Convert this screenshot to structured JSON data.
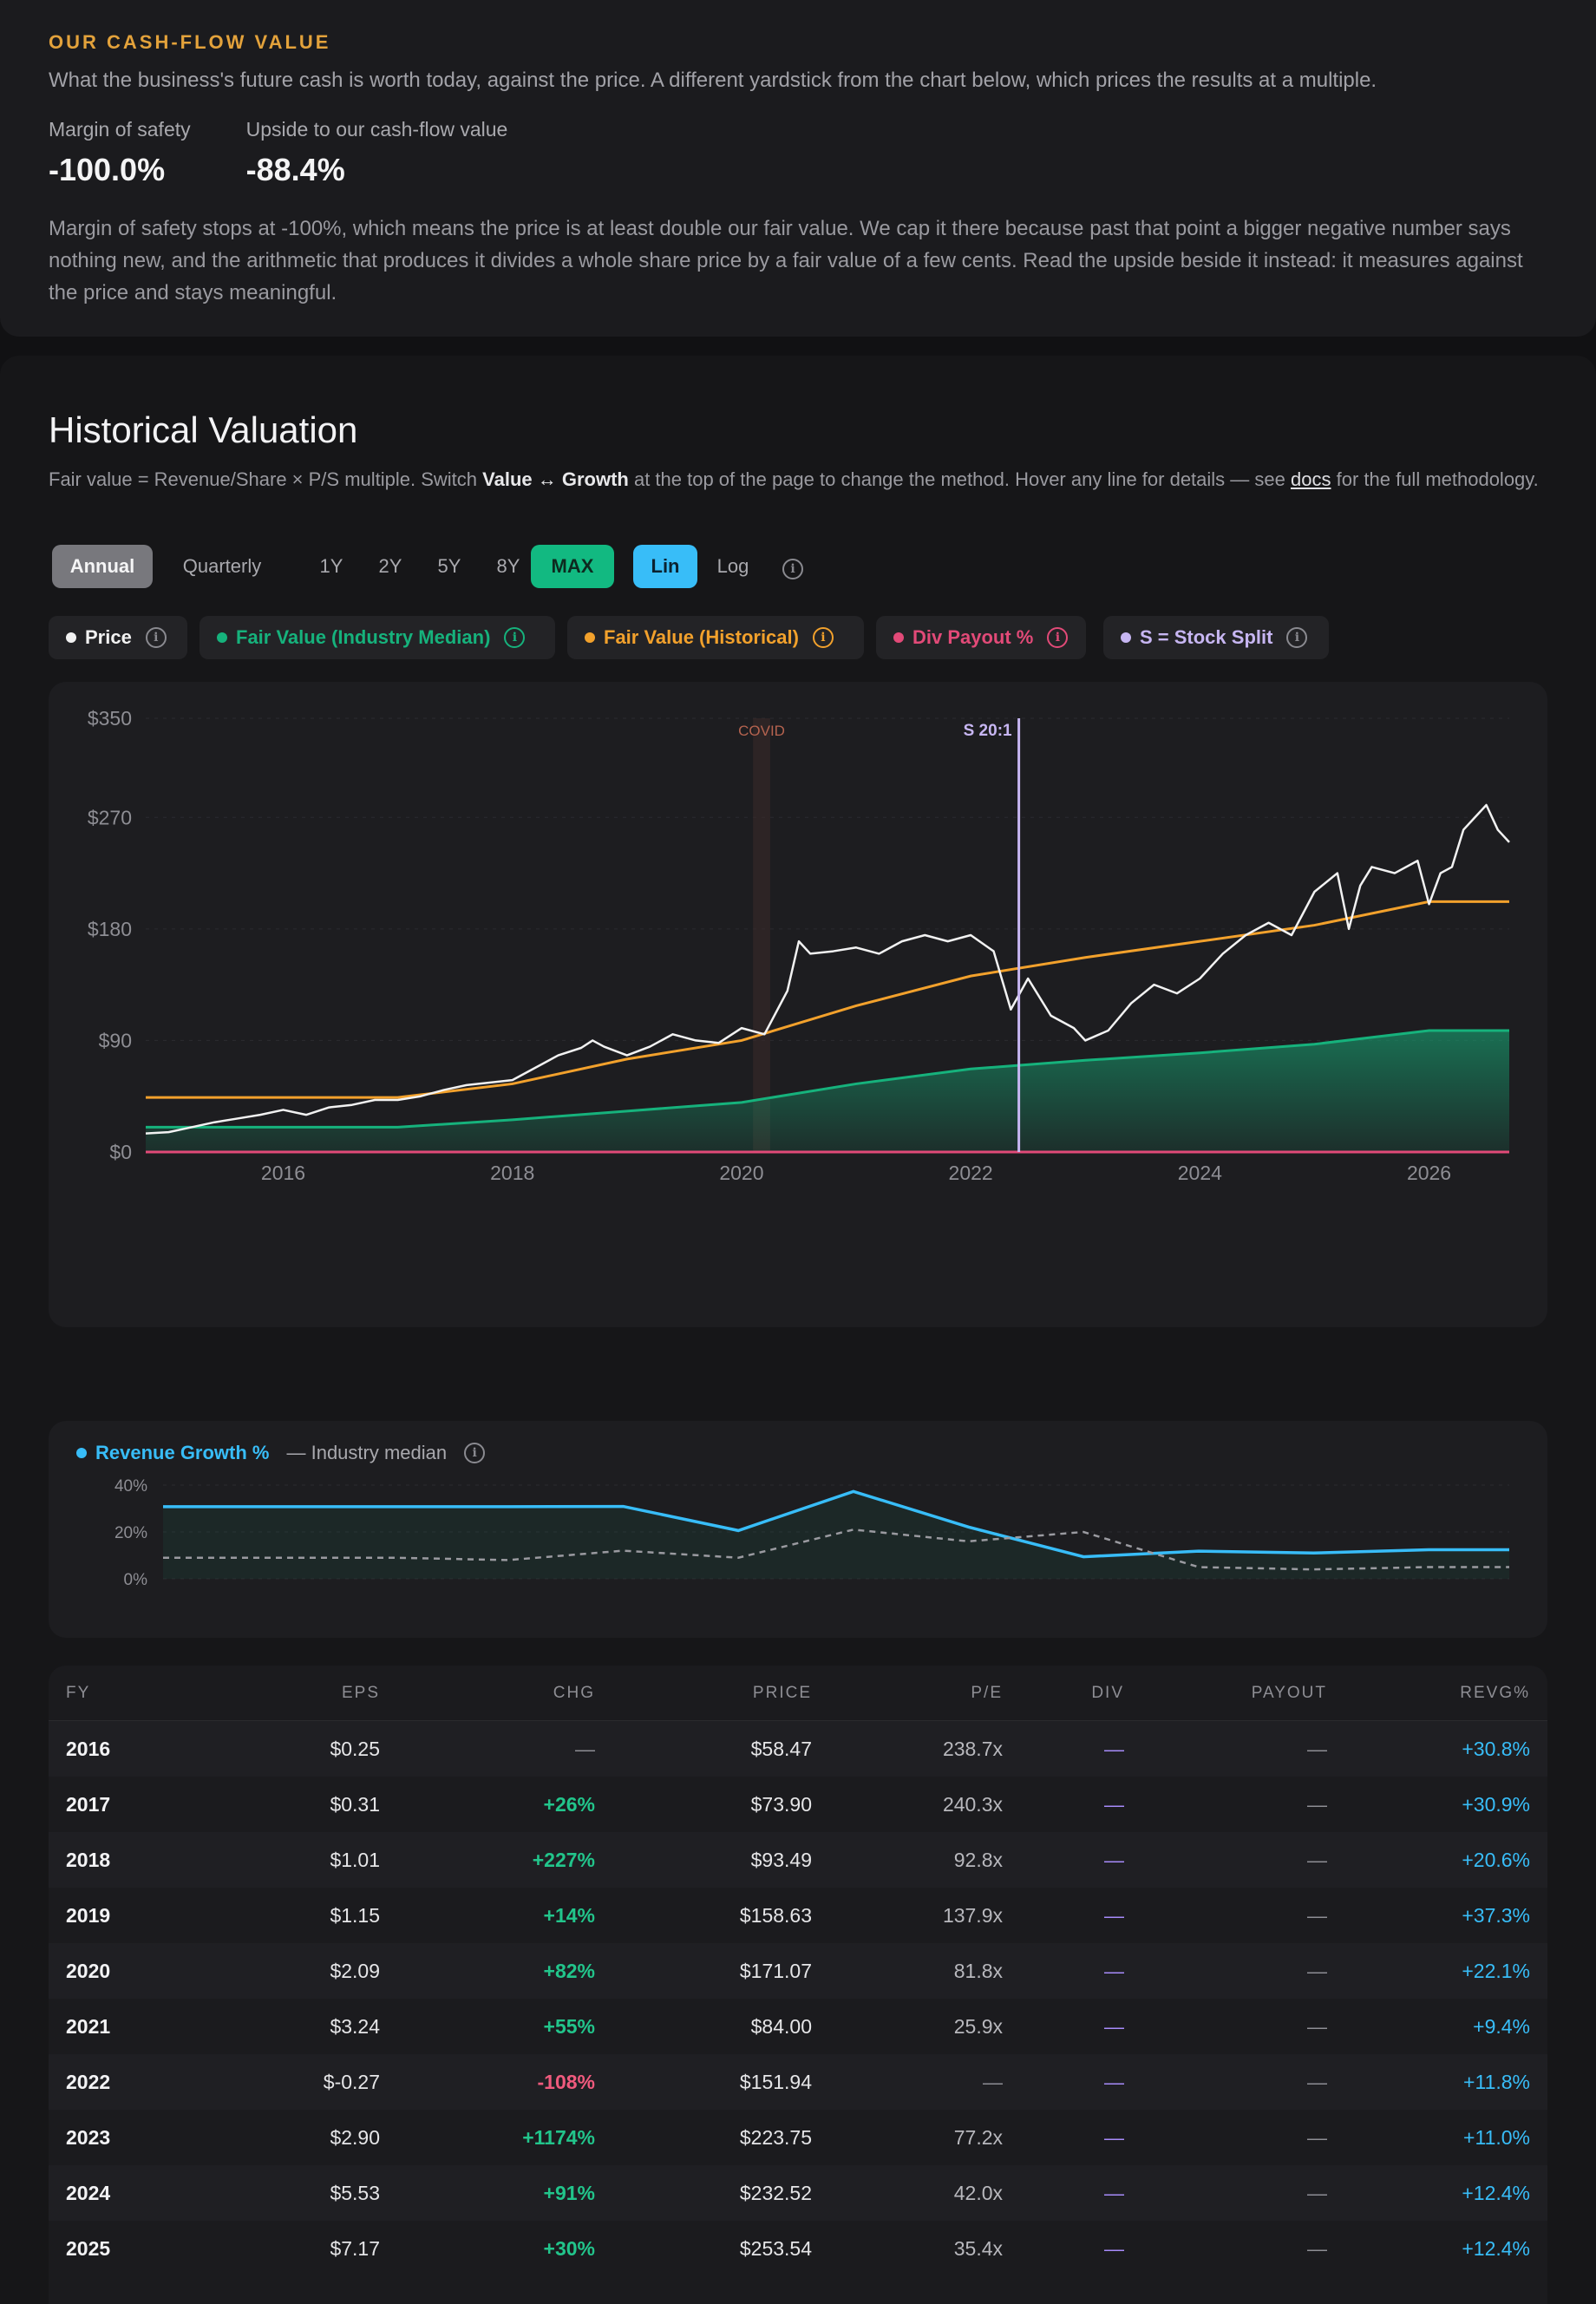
{
  "cashflow": {
    "eyebrow": "OUR CASH-FLOW VALUE",
    "description": "What the business's future cash is worth today, against the price. A different yardstick from the chart below, which prices the results at a multiple.",
    "metrics": [
      {
        "label": "Margin of safety",
        "value": "-100.0%"
      },
      {
        "label": "Upside to our cash-flow value",
        "value": "-88.4%"
      }
    ],
    "note": "Margin of safety stops at -100%, which means the price is at least double our fair value. We cap it there because past that point a bigger negative number says nothing new, and the arithmetic that produces it divides a whole share price by a fair value of a few cents. Read the upside beside it instead: it measures against the price and stays meaningful."
  },
  "historical": {
    "title": "Historical Valuation",
    "desc_part1": "Fair value = Revenue/Share × P/S multiple. Switch ",
    "desc_bold": "Value ↔ Growth",
    "desc_part2": " at the top of the page to change the method. Hover any line for details — see ",
    "desc_link": "docs",
    "desc_part3": " for the full methodology.",
    "period_toggle": [
      "Annual",
      "Quarterly"
    ],
    "ranges": [
      "1Y",
      "2Y",
      "5Y",
      "8Y",
      "MAX"
    ],
    "scale_toggle": [
      "Lin",
      "Log"
    ],
    "active": {
      "period": "Annual",
      "range": "MAX",
      "scale": "Lin"
    },
    "info_icon": "info-icon",
    "legend": [
      {
        "label": "Price",
        "color": "#f2f2f2"
      },
      {
        "label": "Fair Value (Industry Median)",
        "color": "#16b27c"
      },
      {
        "label": "Fair Value (Historical)",
        "color": "#f2a12c"
      },
      {
        "label": "Div Payout %",
        "color": "#e24a78"
      },
      {
        "label": "S = Stock Split",
        "color": "#c7b6f2"
      }
    ]
  },
  "chart_data": [
    {
      "type": "line",
      "y_ticks": [
        "$350",
        "$270",
        "$180",
        "$90",
        "$0"
      ],
      "x_ticks": [
        "2016",
        "2018",
        "2020",
        "2022",
        "2024",
        "2026"
      ],
      "ylim": [
        0,
        350
      ],
      "xlim": [
        2014.8,
        2026.7
      ],
      "annotations": [
        {
          "label": "COVID",
          "x_start": 2020.1,
          "x_end": 2020.25
        },
        {
          "label": "S 20:1",
          "x": 2022.42
        }
      ],
      "series": [
        {
          "name": "Price",
          "x": [
            2014.8,
            2015.0,
            2015.2,
            2015.4,
            2015.6,
            2015.8,
            2016.0,
            2016.2,
            2016.4,
            2016.6,
            2016.8,
            2017.0,
            2017.2,
            2017.4,
            2017.6,
            2017.8,
            2018.0,
            2018.2,
            2018.4,
            2018.6,
            2018.7,
            2018.8,
            2019.0,
            2019.2,
            2019.4,
            2019.6,
            2019.8,
            2020.0,
            2020.2,
            2020.4,
            2020.5,
            2020.6,
            2020.8,
            2021.0,
            2021.2,
            2021.4,
            2021.6,
            2021.8,
            2022.0,
            2022.2,
            2022.35,
            2022.5,
            2022.7,
            2022.9,
            2023.0,
            2023.2,
            2023.4,
            2023.6,
            2023.8,
            2024.0,
            2024.2,
            2024.4,
            2024.6,
            2024.8,
            2025.0,
            2025.2,
            2025.3,
            2025.4,
            2025.5,
            2025.7,
            2025.9,
            2026.0,
            2026.1,
            2026.2,
            2026.3,
            2026.4,
            2026.5,
            2026.6,
            2026.7
          ],
          "values": [
            15,
            16,
            20,
            24,
            27,
            30,
            34,
            30,
            36,
            38,
            42,
            42,
            45,
            50,
            54,
            56,
            58,
            68,
            78,
            84,
            90,
            85,
            78,
            85,
            95,
            90,
            88,
            100,
            95,
            130,
            170,
            160,
            162,
            165,
            160,
            170,
            175,
            170,
            175,
            162,
            115,
            140,
            110,
            100,
            90,
            98,
            120,
            135,
            128,
            140,
            160,
            175,
            185,
            175,
            210,
            225,
            180,
            215,
            230,
            225,
            235,
            200,
            225,
            230,
            260,
            270,
            280,
            260,
            250
          ]
        },
        {
          "name": "Fair Value (Industry Median)",
          "x": [
            2014.8,
            2017.0,
            2018.0,
            2019.0,
            2020.0,
            2021.0,
            2022.0,
            2023.0,
            2024.0,
            2025.0,
            2026.0,
            2026.7
          ],
          "values": [
            20,
            20,
            26,
            33,
            40,
            55,
            67,
            74,
            80,
            87,
            98,
            98
          ]
        },
        {
          "name": "Fair Value (Historical)",
          "x": [
            2014.8,
            2017.0,
            2018.0,
            2019.0,
            2020.0,
            2021.0,
            2022.0,
            2023.0,
            2024.0,
            2025.0,
            2026.0,
            2026.7
          ],
          "values": [
            44,
            44,
            55,
            75,
            90,
            118,
            142,
            157,
            170,
            183,
            202,
            202
          ]
        },
        {
          "name": "Div Payout %",
          "x": [
            2014.8,
            2026.7
          ],
          "values": [
            0,
            0
          ]
        }
      ]
    },
    {
      "type": "line",
      "y_ticks": [
        "40%",
        "20%",
        "0%"
      ],
      "ylim": [
        0,
        40
      ],
      "series": [
        {
          "name": "Revenue Growth %",
          "x": [
            2015,
            2016,
            2017,
            2018,
            2019,
            2020,
            2021,
            2022,
            2023,
            2024,
            2025,
            2026,
            2026.7
          ],
          "values": [
            30.8,
            30.8,
            30.8,
            30.8,
            30.9,
            20.6,
            37.3,
            22.1,
            9.4,
            11.8,
            11.0,
            12.4,
            12.4
          ]
        },
        {
          "name": "Industry median",
          "x": [
            2015,
            2016,
            2017,
            2018,
            2019,
            2020,
            2021,
            2022,
            2023,
            2024,
            2025,
            2026,
            2026.7
          ],
          "values": [
            9,
            9,
            9,
            8,
            12,
            9,
            21,
            16,
            20,
            5,
            4,
            5,
            5
          ]
        }
      ]
    }
  ],
  "growth": {
    "legend_series": "Revenue Growth %",
    "legend_median": "— Industry median"
  },
  "table": {
    "headers": [
      "FY",
      "EPS",
      "CHG",
      "PRICE",
      "P/E",
      "DIV",
      "PAYOUT",
      "REVG%"
    ],
    "rows": [
      {
        "fy": "2016",
        "eps": "$0.25",
        "chg": "—",
        "price": "$58.47",
        "pe": "238.7x",
        "div": "—",
        "payout": "—",
        "revg": "+30.8%"
      },
      {
        "fy": "2017",
        "eps": "$0.31",
        "chg": "+26%",
        "price": "$73.90",
        "pe": "240.3x",
        "div": "—",
        "payout": "—",
        "revg": "+30.9%"
      },
      {
        "fy": "2018",
        "eps": "$1.01",
        "chg": "+227%",
        "price": "$93.49",
        "pe": "92.8x",
        "div": "—",
        "payout": "—",
        "revg": "+20.6%"
      },
      {
        "fy": "2019",
        "eps": "$1.15",
        "chg": "+14%",
        "price": "$158.63",
        "pe": "137.9x",
        "div": "—",
        "payout": "—",
        "revg": "+37.3%"
      },
      {
        "fy": "2020",
        "eps": "$2.09",
        "chg": "+82%",
        "price": "$171.07",
        "pe": "81.8x",
        "div": "—",
        "payout": "—",
        "revg": "+22.1%"
      },
      {
        "fy": "2021",
        "eps": "$3.24",
        "chg": "+55%",
        "price": "$84.00",
        "pe": "25.9x",
        "div": "—",
        "payout": "—",
        "revg": "+9.4%"
      },
      {
        "fy": "2022",
        "eps": "$-0.27",
        "chg": "-108%",
        "price": "$151.94",
        "pe": "—",
        "div": "—",
        "payout": "—",
        "revg": "+11.8%"
      },
      {
        "fy": "2023",
        "eps": "$2.90",
        "chg": "+1174%",
        "price": "$223.75",
        "pe": "77.2x",
        "div": "—",
        "payout": "—",
        "revg": "+11.0%"
      },
      {
        "fy": "2024",
        "eps": "$5.53",
        "chg": "+91%",
        "price": "$232.52",
        "pe": "42.0x",
        "div": "—",
        "payout": "—",
        "revg": "+12.4%"
      },
      {
        "fy": "2025",
        "eps": "$7.17",
        "chg": "+30%",
        "price": "$253.54",
        "pe": "35.4x",
        "div": "—",
        "payout": "—",
        "revg": "+12.4%"
      }
    ],
    "colors": {
      "positive": "#22c58b",
      "negative": "#ef5a7d",
      "revg": "#38bdf8",
      "div": "#a78bfa",
      "muted": "#8e8e94"
    }
  }
}
